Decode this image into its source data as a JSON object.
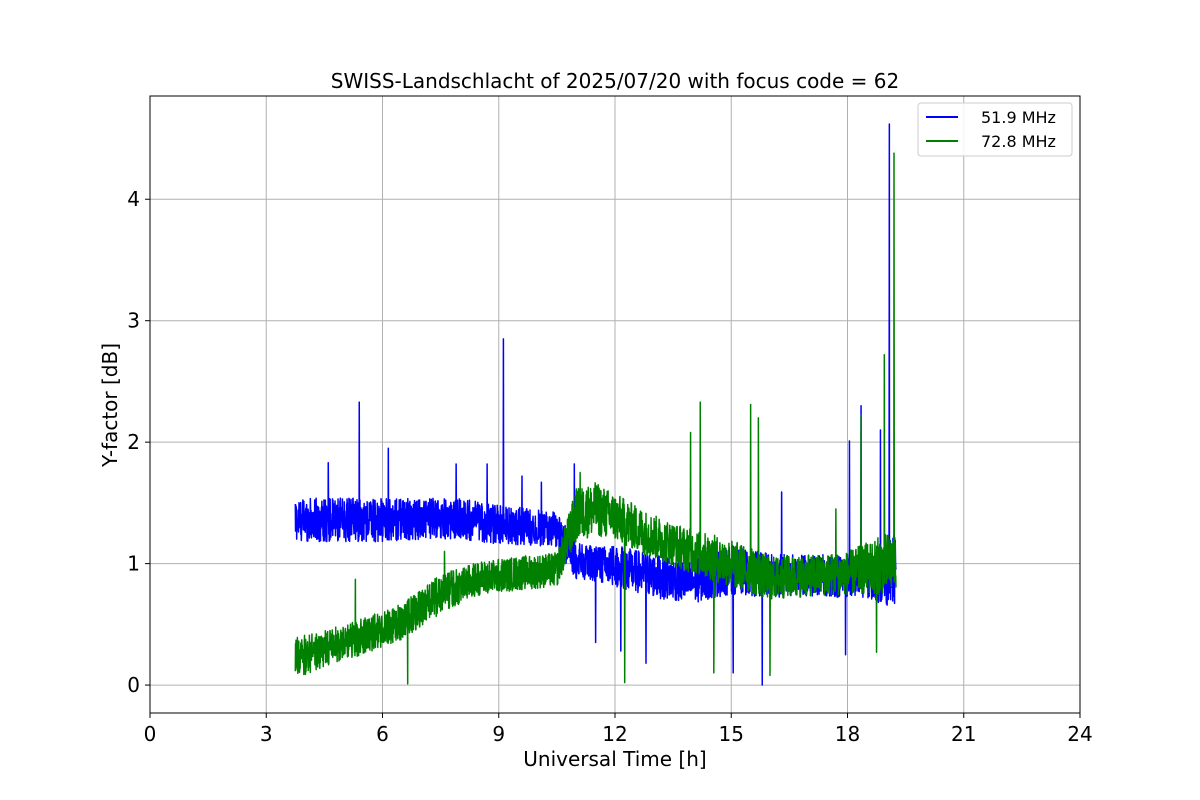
{
  "chart_data": {
    "type": "line",
    "title": "SWISS-Landschlacht of 2025/07/20 with focus code = 62",
    "xlabel": "Universal Time [h]",
    "ylabel": "Y-factor [dB]",
    "xlim": [
      0,
      24
    ],
    "ylim": [
      -0.23,
      4.85
    ],
    "xticks": [
      0,
      3,
      6,
      9,
      12,
      15,
      18,
      21,
      24
    ],
    "yticks": [
      0,
      1,
      2,
      3,
      4
    ],
    "grid": true,
    "legend_position": "upper right",
    "series": [
      {
        "name": "51.9 MHz",
        "color": "#0000ff",
        "x_start": 3.75,
        "x_end": 19.25,
        "baseline_x": [
          3.75,
          5,
          6,
          7,
          8,
          9,
          10,
          10.5,
          11,
          11.5,
          12,
          13,
          14,
          15,
          16,
          17,
          18,
          18.5,
          19,
          19.25
        ],
        "baseline_y": [
          1.36,
          1.36,
          1.36,
          1.37,
          1.37,
          1.32,
          1.3,
          1.27,
          1.02,
          1.0,
          0.98,
          0.9,
          0.85,
          0.95,
          0.9,
          0.9,
          0.9,
          0.9,
          0.9,
          0.95
        ],
        "noise_amplitude": [
          0.18,
          0.18,
          0.18,
          0.17,
          0.17,
          0.16,
          0.15,
          0.15,
          0.15,
          0.15,
          0.17,
          0.18,
          0.18,
          0.2,
          0.18,
          0.17,
          0.18,
          0.18,
          0.25,
          0.3
        ],
        "spikes": [
          {
            "x": 4.6,
            "y": 1.83
          },
          {
            "x": 5.4,
            "y": 2.33
          },
          {
            "x": 6.15,
            "y": 1.95
          },
          {
            "x": 7.9,
            "y": 1.82
          },
          {
            "x": 8.7,
            "y": 1.82
          },
          {
            "x": 9.12,
            "y": 2.85
          },
          {
            "x": 9.6,
            "y": 1.72
          },
          {
            "x": 10.1,
            "y": 1.67
          },
          {
            "x": 10.95,
            "y": 1.82
          },
          {
            "x": 11.5,
            "y": 0.35
          },
          {
            "x": 12.15,
            "y": 0.28
          },
          {
            "x": 12.8,
            "y": 0.18
          },
          {
            "x": 15.05,
            "y": 0.1
          },
          {
            "x": 15.8,
            "y": 0.0
          },
          {
            "x": 16.3,
            "y": 1.59
          },
          {
            "x": 18.05,
            "y": 2.01
          },
          {
            "x": 18.35,
            "y": 2.3
          },
          {
            "x": 18.85,
            "y": 2.1
          },
          {
            "x": 19.08,
            "y": 4.62
          },
          {
            "x": 17.95,
            "y": 0.25
          }
        ]
      },
      {
        "name": "72.8 MHz",
        "color": "#008000",
        "x_start": 3.75,
        "x_end": 19.25,
        "baseline_x": [
          3.75,
          4.5,
          5.5,
          6.5,
          7.5,
          8.5,
          9.5,
          10.5,
          11,
          11.5,
          12,
          13,
          14,
          15,
          16,
          17,
          18,
          19,
          19.25
        ],
        "baseline_y": [
          0.22,
          0.3,
          0.4,
          0.52,
          0.75,
          0.88,
          0.92,
          0.95,
          1.4,
          1.45,
          1.38,
          1.22,
          1.1,
          1.0,
          0.88,
          0.9,
          0.92,
          1.0,
          1.02
        ],
        "noise_amplitude": [
          0.17,
          0.15,
          0.15,
          0.15,
          0.16,
          0.14,
          0.14,
          0.14,
          0.22,
          0.22,
          0.2,
          0.18,
          0.18,
          0.2,
          0.18,
          0.17,
          0.18,
          0.25,
          0.25
        ],
        "spikes": [
          {
            "x": 5.3,
            "y": 0.87
          },
          {
            "x": 6.65,
            "y": 0.01
          },
          {
            "x": 7.6,
            "y": 1.1
          },
          {
            "x": 11.1,
            "y": 1.75
          },
          {
            "x": 12.25,
            "y": 0.02
          },
          {
            "x": 13.95,
            "y": 2.08
          },
          {
            "x": 14.2,
            "y": 2.33
          },
          {
            "x": 14.55,
            "y": 0.1
          },
          {
            "x": 15.5,
            "y": 2.31
          },
          {
            "x": 15.7,
            "y": 2.2
          },
          {
            "x": 16.0,
            "y": 0.08
          },
          {
            "x": 17.7,
            "y": 1.45
          },
          {
            "x": 18.35,
            "y": 2.22
          },
          {
            "x": 18.75,
            "y": 0.27
          },
          {
            "x": 18.95,
            "y": 2.72
          },
          {
            "x": 19.2,
            "y": 4.38
          }
        ]
      }
    ]
  }
}
